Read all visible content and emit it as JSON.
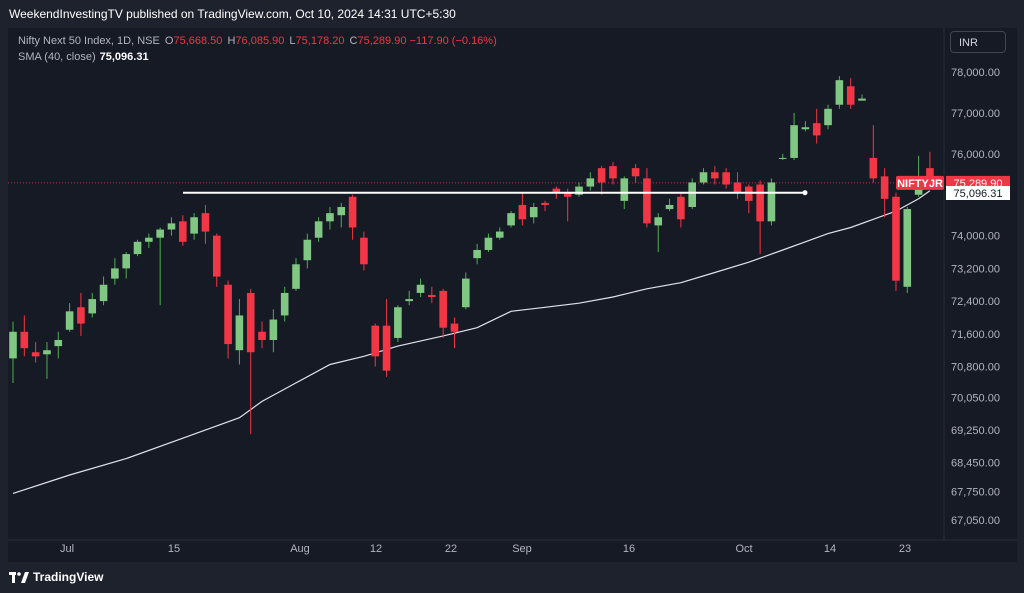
{
  "header": {
    "published_by": "WeekendInvestingTV published on TradingView.com, Oct 10, 2024 14:31 UTC+5:30"
  },
  "legend": {
    "symbol_line": "Nifty Next 50 Index, 1D, NSE",
    "open_label": "O",
    "open_value": "75,668.50",
    "high_label": "H",
    "high_value": "76,085.90",
    "low_label": "L",
    "low_value": "75,178.20",
    "close_label": "C",
    "close_value": "75,289.90",
    "change": "−117.90 (−0.16%)",
    "sma_label": "SMA (40, close)",
    "sma_value": "75,096.31"
  },
  "currency_button": "INR",
  "footer": {
    "logo_text": "TradingView"
  },
  "colors": {
    "up": "#4caf50",
    "up_body": "#81c784",
    "down": "#f23645",
    "sma_line": "#e0e3eb",
    "hline": "#ffffff",
    "price_tag": "#f23645"
  },
  "chart_data": {
    "type": "candlestick",
    "symbol": "NIFTYJR",
    "x_ticks": [
      "Jul",
      "15",
      "Aug",
      "12",
      "22",
      "Sep",
      "16",
      "Oct",
      "14",
      "23"
    ],
    "y_ticks": [
      "78,000.00",
      "77,000.00",
      "76,000.00",
      "75,000.00",
      "74,000.00",
      "73,200.00",
      "72,400.00",
      "71,600.00",
      "70,800.00",
      "70,050.00",
      "69,250.00",
      "68,450.00",
      "67,750.00",
      "67,050.00"
    ],
    "last_price": 75289.9,
    "last_price_label": "75,289.90",
    "sma_last_label": "75,096.31",
    "horizontal_line": 75050,
    "candles": [
      {
        "o": 71000,
        "h": 71900,
        "l": 70400,
        "c": 71650
      },
      {
        "o": 71650,
        "h": 72050,
        "l": 71050,
        "c": 71250
      },
      {
        "o": 71150,
        "h": 71400,
        "l": 70900,
        "c": 71050
      },
      {
        "o": 71100,
        "h": 71400,
        "l": 70500,
        "c": 71200
      },
      {
        "o": 71300,
        "h": 71650,
        "l": 71000,
        "c": 71450
      },
      {
        "o": 71700,
        "h": 72350,
        "l": 71650,
        "c": 72150
      },
      {
        "o": 72250,
        "h": 72600,
        "l": 71550,
        "c": 71850
      },
      {
        "o": 72100,
        "h": 72600,
        "l": 72000,
        "c": 72450
      },
      {
        "o": 72400,
        "h": 73000,
        "l": 72300,
        "c": 72800
      },
      {
        "o": 72950,
        "h": 73450,
        "l": 72800,
        "c": 73200
      },
      {
        "o": 73200,
        "h": 73600,
        "l": 72950,
        "c": 73550
      },
      {
        "o": 73550,
        "h": 73900,
        "l": 73500,
        "c": 73850
      },
      {
        "o": 73850,
        "h": 74050,
        "l": 73700,
        "c": 73950
      },
      {
        "o": 73950,
        "h": 74200,
        "l": 72300,
        "c": 74150
      },
      {
        "o": 74150,
        "h": 74450,
        "l": 74000,
        "c": 74300
      },
      {
        "o": 74350,
        "h": 74500,
        "l": 73750,
        "c": 73850
      },
      {
        "o": 74050,
        "h": 74550,
        "l": 73900,
        "c": 74450
      },
      {
        "o": 74550,
        "h": 74750,
        "l": 73800,
        "c": 74100
      },
      {
        "o": 74000,
        "h": 74050,
        "l": 72750,
        "c": 73000
      },
      {
        "o": 72800,
        "h": 72900,
        "l": 71000,
        "c": 71350
      },
      {
        "o": 71200,
        "h": 72450,
        "l": 70850,
        "c": 72050
      },
      {
        "o": 72600,
        "h": 72700,
        "l": 69150,
        "c": 71150
      },
      {
        "o": 71650,
        "h": 71900,
        "l": 71250,
        "c": 71450
      },
      {
        "o": 71450,
        "h": 72200,
        "l": 71150,
        "c": 71950
      },
      {
        "o": 72050,
        "h": 72750,
        "l": 71900,
        "c": 72600
      },
      {
        "o": 72700,
        "h": 73450,
        "l": 72650,
        "c": 73300
      },
      {
        "o": 73400,
        "h": 74050,
        "l": 73200,
        "c": 73900
      },
      {
        "o": 73950,
        "h": 74450,
        "l": 73850,
        "c": 74350
      },
      {
        "o": 74350,
        "h": 74700,
        "l": 74150,
        "c": 74550
      },
      {
        "o": 74500,
        "h": 74800,
        "l": 74200,
        "c": 74700
      },
      {
        "o": 74950,
        "h": 75000,
        "l": 73900,
        "c": 74200
      },
      {
        "o": 73950,
        "h": 74100,
        "l": 73150,
        "c": 73300
      },
      {
        "o": 71800,
        "h": 71850,
        "l": 70800,
        "c": 71050
      },
      {
        "o": 71800,
        "h": 72450,
        "l": 70550,
        "c": 70700
      },
      {
        "o": 71500,
        "h": 72300,
        "l": 71400,
        "c": 72250
      },
      {
        "o": 72400,
        "h": 72650,
        "l": 72300,
        "c": 72450
      },
      {
        "o": 72600,
        "h": 72950,
        "l": 72500,
        "c": 72800
      },
      {
        "o": 72550,
        "h": 72750,
        "l": 72350,
        "c": 72500
      },
      {
        "o": 72650,
        "h": 72700,
        "l": 71500,
        "c": 71750
      },
      {
        "o": 71850,
        "h": 72000,
        "l": 71250,
        "c": 71650
      },
      {
        "o": 72250,
        "h": 73100,
        "l": 72200,
        "c": 72950
      },
      {
        "o": 73450,
        "h": 73800,
        "l": 73300,
        "c": 73650
      },
      {
        "o": 73650,
        "h": 74050,
        "l": 73600,
        "c": 73950
      },
      {
        "o": 73950,
        "h": 74200,
        "l": 73900,
        "c": 74100
      },
      {
        "o": 74250,
        "h": 74600,
        "l": 74200,
        "c": 74550
      },
      {
        "o": 74750,
        "h": 75050,
        "l": 74250,
        "c": 74400
      },
      {
        "o": 74450,
        "h": 74800,
        "l": 74300,
        "c": 74700
      },
      {
        "o": 74800,
        "h": 74850,
        "l": 74600,
        "c": 74750
      },
      {
        "o": 75150,
        "h": 75200,
        "l": 74900,
        "c": 75050
      },
      {
        "o": 75050,
        "h": 75150,
        "l": 74350,
        "c": 74950
      },
      {
        "o": 75000,
        "h": 75300,
        "l": 74950,
        "c": 75200
      },
      {
        "o": 75200,
        "h": 75550,
        "l": 75100,
        "c": 75400
      },
      {
        "o": 75650,
        "h": 75700,
        "l": 75000,
        "c": 75300
      },
      {
        "o": 75700,
        "h": 75800,
        "l": 75250,
        "c": 75400
      },
      {
        "o": 74850,
        "h": 75450,
        "l": 74650,
        "c": 75400
      },
      {
        "o": 75650,
        "h": 75750,
        "l": 75300,
        "c": 75450
      },
      {
        "o": 75400,
        "h": 75650,
        "l": 74200,
        "c": 74300
      },
      {
        "o": 74250,
        "h": 74550,
        "l": 73600,
        "c": 74450
      },
      {
        "o": 74650,
        "h": 74900,
        "l": 74600,
        "c": 74750
      },
      {
        "o": 74950,
        "h": 75050,
        "l": 74200,
        "c": 74400
      },
      {
        "o": 74700,
        "h": 75400,
        "l": 74650,
        "c": 75300
      },
      {
        "o": 75300,
        "h": 75650,
        "l": 75250,
        "c": 75550
      },
      {
        "o": 75550,
        "h": 75700,
        "l": 75250,
        "c": 75400
      },
      {
        "o": 75550,
        "h": 75650,
        "l": 75150,
        "c": 75250
      },
      {
        "o": 75300,
        "h": 75550,
        "l": 74900,
        "c": 75050
      },
      {
        "o": 75200,
        "h": 75250,
        "l": 74550,
        "c": 74850
      },
      {
        "o": 75250,
        "h": 75350,
        "l": 73550,
        "c": 74350
      },
      {
        "o": 74350,
        "h": 75400,
        "l": 74250,
        "c": 75300
      },
      {
        "o": 75900,
        "h": 76000,
        "l": 75850,
        "c": 75900
      },
      {
        "o": 75900,
        "h": 77000,
        "l": 75850,
        "c": 76700
      },
      {
        "o": 76600,
        "h": 76800,
        "l": 76550,
        "c": 76650
      },
      {
        "o": 76750,
        "h": 77100,
        "l": 76250,
        "c": 76450
      },
      {
        "o": 76700,
        "h": 77200,
        "l": 76600,
        "c": 77100
      },
      {
        "o": 77200,
        "h": 77900,
        "l": 77100,
        "c": 77800
      },
      {
        "o": 77650,
        "h": 77850,
        "l": 77100,
        "c": 77200
      },
      {
        "o": 77300,
        "h": 77450,
        "l": 77300,
        "c": 77350
      },
      {
        "o": 75900,
        "h": 76700,
        "l": 75300,
        "c": 75400
      },
      {
        "o": 75450,
        "h": 75650,
        "l": 74450,
        "c": 74900
      },
      {
        "o": 74950,
        "h": 75050,
        "l": 72650,
        "c": 72900
      },
      {
        "o": 72750,
        "h": 74700,
        "l": 72600,
        "c": 74650
      },
      {
        "o": 75000,
        "h": 75950,
        "l": 74950,
        "c": 75300
      },
      {
        "o": 75650,
        "h": 76050,
        "l": 75150,
        "c": 75290
      }
    ],
    "sma": [
      {
        "i": 0,
        "v": 67700
      },
      {
        "i": 5,
        "v": 68150
      },
      {
        "i": 10,
        "v": 68550
      },
      {
        "i": 15,
        "v": 69050
      },
      {
        "i": 20,
        "v": 69550
      },
      {
        "i": 22,
        "v": 69950
      },
      {
        "i": 25,
        "v": 70400
      },
      {
        "i": 28,
        "v": 70850
      },
      {
        "i": 31,
        "v": 71050
      },
      {
        "i": 34,
        "v": 71300
      },
      {
        "i": 38,
        "v": 71550
      },
      {
        "i": 41,
        "v": 71750
      },
      {
        "i": 44,
        "v": 72150
      },
      {
        "i": 47,
        "v": 72250
      },
      {
        "i": 50,
        "v": 72350
      },
      {
        "i": 53,
        "v": 72500
      },
      {
        "i": 56,
        "v": 72700
      },
      {
        "i": 59,
        "v": 72850
      },
      {
        "i": 62,
        "v": 73100
      },
      {
        "i": 65,
        "v": 73350
      },
      {
        "i": 68,
        "v": 73650
      },
      {
        "i": 70,
        "v": 73850
      },
      {
        "i": 72,
        "v": 74050
      },
      {
        "i": 74,
        "v": 74200
      },
      {
        "i": 76,
        "v": 74400
      },
      {
        "i": 78,
        "v": 74600
      },
      {
        "i": 80,
        "v": 74900
      },
      {
        "i": 81,
        "v": 75096
      }
    ]
  }
}
